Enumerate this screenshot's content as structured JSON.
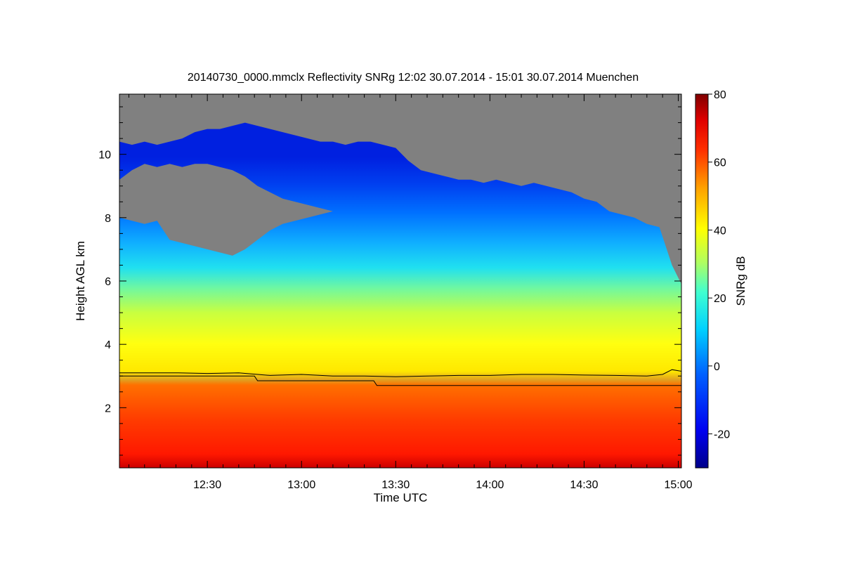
{
  "chart_data": {
    "type": "heatmap",
    "title": "20140730_0000.mmclx Reflectivity SNRg   12:02 30.07.2014 - 15:01 30.07.2014 Muenchen",
    "xlabel": "Time UTC",
    "ylabel": "Height AGL km",
    "x_range_minutes_utc": [
      722,
      901
    ],
    "y_range_km": [
      0.1,
      11.9
    ],
    "x_ticks": [
      {
        "minutes": 750,
        "label": "12:30"
      },
      {
        "minutes": 780,
        "label": "13:00"
      },
      {
        "minutes": 810,
        "label": "13:30"
      },
      {
        "minutes": 840,
        "label": "14:00"
      },
      {
        "minutes": 870,
        "label": "14:30"
      },
      {
        "minutes": 900,
        "label": "15:00"
      }
    ],
    "y_ticks": [
      {
        "value": 2,
        "label": "2"
      },
      {
        "value": 4,
        "label": "4"
      },
      {
        "value": 6,
        "label": "6"
      },
      {
        "value": 8,
        "label": "8"
      },
      {
        "value": 10,
        "label": "10"
      }
    ],
    "colorbar": {
      "label": "SNRg dB",
      "range": [
        -30,
        80
      ],
      "ticks": [
        {
          "value": -20,
          "label": "-20"
        },
        {
          "value": 0,
          "label": "0"
        },
        {
          "value": 20,
          "label": "20"
        },
        {
          "value": 40,
          "label": "40"
        },
        {
          "value": 60,
          "label": "60"
        },
        {
          "value": 80,
          "label": "80"
        }
      ]
    },
    "background_color": "#808080",
    "cloud_top_km": [
      [
        722,
        10.4
      ],
      [
        726,
        10.3
      ],
      [
        730,
        10.4
      ],
      [
        734,
        10.3
      ],
      [
        738,
        10.4
      ],
      [
        742,
        10.5
      ],
      [
        746,
        10.7
      ],
      [
        750,
        10.8
      ],
      [
        754,
        10.8
      ],
      [
        758,
        10.9
      ],
      [
        762,
        11.0
      ],
      [
        766,
        10.9
      ],
      [
        770,
        10.8
      ],
      [
        774,
        10.7
      ],
      [
        778,
        10.6
      ],
      [
        782,
        10.5
      ],
      [
        786,
        10.4
      ],
      [
        790,
        10.4
      ],
      [
        794,
        10.3
      ],
      [
        798,
        10.4
      ],
      [
        802,
        10.4
      ],
      [
        806,
        10.3
      ],
      [
        810,
        10.2
      ],
      [
        814,
        9.8
      ],
      [
        818,
        9.5
      ],
      [
        822,
        9.4
      ],
      [
        826,
        9.3
      ],
      [
        830,
        9.2
      ],
      [
        834,
        9.2
      ],
      [
        838,
        9.1
      ],
      [
        842,
        9.2
      ],
      [
        846,
        9.1
      ],
      [
        850,
        9.0
      ],
      [
        854,
        9.1
      ],
      [
        858,
        9.0
      ],
      [
        862,
        8.9
      ],
      [
        866,
        8.8
      ],
      [
        870,
        8.6
      ],
      [
        874,
        8.5
      ],
      [
        878,
        8.2
      ],
      [
        882,
        8.1
      ],
      [
        886,
        8.0
      ],
      [
        890,
        7.8
      ],
      [
        894,
        7.7
      ],
      [
        898,
        6.5
      ],
      [
        901,
        5.9
      ]
    ],
    "gap_upper_edge_km": [
      [
        722,
        9.2
      ],
      [
        726,
        9.5
      ],
      [
        730,
        9.7
      ],
      [
        734,
        9.6
      ],
      [
        738,
        9.7
      ],
      [
        742,
        9.6
      ],
      [
        746,
        9.7
      ],
      [
        750,
        9.7
      ],
      [
        754,
        9.6
      ],
      [
        758,
        9.5
      ],
      [
        762,
        9.3
      ],
      [
        766,
        9.0
      ],
      [
        770,
        8.8
      ],
      [
        774,
        8.6
      ],
      [
        778,
        8.5
      ],
      [
        782,
        8.4
      ],
      [
        786,
        8.3
      ],
      [
        790,
        8.2
      ]
    ],
    "gap_lower_edge_km": [
      [
        722,
        8.0
      ],
      [
        726,
        7.9
      ],
      [
        730,
        7.8
      ],
      [
        734,
        7.9
      ],
      [
        738,
        7.3
      ],
      [
        742,
        7.2
      ],
      [
        746,
        7.1
      ],
      [
        750,
        7.0
      ],
      [
        754,
        6.9
      ],
      [
        758,
        6.8
      ],
      [
        762,
        7.0
      ],
      [
        766,
        7.3
      ],
      [
        770,
        7.6
      ],
      [
        774,
        7.8
      ],
      [
        778,
        7.9
      ],
      [
        782,
        8.0
      ],
      [
        786,
        8.1
      ],
      [
        790,
        8.2
      ]
    ],
    "melting_layer_line_km": [
      [
        722,
        3.1
      ],
      [
        740,
        3.1
      ],
      [
        750,
        3.08
      ],
      [
        760,
        3.1
      ],
      [
        770,
        3.02
      ],
      [
        780,
        3.05
      ],
      [
        790,
        3.0
      ],
      [
        800,
        3.0
      ],
      [
        810,
        2.98
      ],
      [
        820,
        3.0
      ],
      [
        830,
        3.02
      ],
      [
        840,
        3.02
      ],
      [
        850,
        3.05
      ],
      [
        860,
        3.05
      ],
      [
        870,
        3.03
      ],
      [
        880,
        3.02
      ],
      [
        890,
        3.0
      ],
      [
        895,
        3.05
      ],
      [
        898,
        3.2
      ],
      [
        901,
        3.15
      ]
    ],
    "freezing_level_line_km": [
      [
        722,
        3.0
      ],
      [
        765,
        3.0
      ],
      [
        766,
        2.85
      ],
      [
        803,
        2.85
      ],
      [
        804,
        2.7
      ],
      [
        901,
        2.7
      ]
    ]
  }
}
